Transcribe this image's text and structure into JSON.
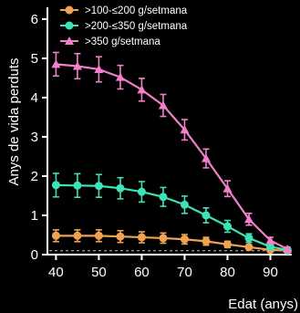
{
  "chart_data": {
    "type": "line",
    "title": "",
    "xlabel": "Edat (anys)",
    "ylabel": "Anys de vida perduts",
    "xlim": [
      38,
      95
    ],
    "ylim": [
      0,
      6.3
    ],
    "xticks": [
      40,
      50,
      60,
      70,
      80,
      90
    ],
    "yticks": [
      0,
      1,
      2,
      3,
      4,
      5,
      6
    ],
    "xtick_labels": [
      "40",
      "50",
      "60",
      "70",
      "80",
      "90"
    ],
    "ytick_labels": [
      "0",
      "1",
      "2",
      "3",
      "4",
      "5",
      "6"
    ],
    "reference_line": {
      "y": 0.1,
      "style": "dashed"
    },
    "legend_position": "top-left",
    "x": [
      40,
      45,
      50,
      55,
      60,
      65,
      70,
      75,
      80,
      85,
      90,
      94
    ],
    "series": [
      {
        "name": ">100-≤200 g/setmana",
        "color": "#f0a253",
        "marker": "circle",
        "values": [
          0.48,
          0.48,
          0.48,
          0.46,
          0.44,
          0.42,
          0.39,
          0.34,
          0.26,
          0.19,
          0.12,
          0.1
        ],
        "error": [
          0.15,
          0.15,
          0.15,
          0.15,
          0.14,
          0.13,
          0.12,
          0.1,
          0.08,
          0.06,
          0.04,
          0.03
        ]
      },
      {
        "name": ">200-≤350 g/setmana",
        "color": "#3de3b6",
        "marker": "circle",
        "values": [
          1.77,
          1.76,
          1.75,
          1.69,
          1.6,
          1.47,
          1.27,
          1.0,
          0.72,
          0.42,
          0.2,
          0.12
        ],
        "error": [
          0.3,
          0.3,
          0.29,
          0.27,
          0.26,
          0.24,
          0.22,
          0.19,
          0.15,
          0.11,
          0.06,
          0.04
        ]
      },
      {
        "name": ">350 g/setmana",
        "color": "#f27fc9",
        "marker": "triangle",
        "values": [
          4.85,
          4.8,
          4.72,
          4.52,
          4.2,
          3.8,
          3.18,
          2.45,
          1.68,
          0.9,
          0.36,
          0.14
        ],
        "error": [
          0.3,
          0.32,
          0.32,
          0.3,
          0.29,
          0.28,
          0.26,
          0.24,
          0.2,
          0.15,
          0.08,
          0.05
        ]
      }
    ]
  }
}
